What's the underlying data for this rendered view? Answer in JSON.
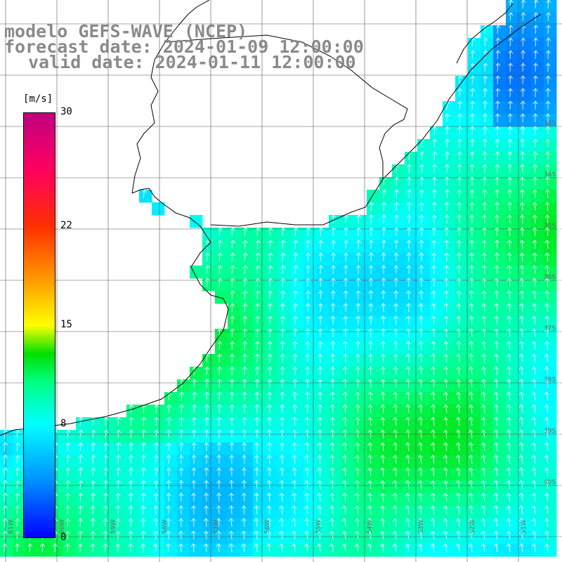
{
  "title": {
    "model": "modelo GEFS-WAVE (NCEP)",
    "forecast": "forecast date: 2024-01-09 12:00:00",
    "valid": "valid date: 2024-01-11 12:00:00"
  },
  "colorbar": {
    "unit": "[m/s]",
    "min": 0,
    "max": 30,
    "ticks": [
      {
        "value": 30,
        "label": "30"
      },
      {
        "value": 22,
        "label": "22"
      },
      {
        "value": 15,
        "label": "15"
      },
      {
        "value": 8,
        "label": "8"
      },
      {
        "value": 0,
        "label": "0"
      }
    ],
    "stops": [
      {
        "value": 0,
        "color": "#0000ff"
      },
      {
        "value": 4,
        "color": "#0090ff"
      },
      {
        "value": 8,
        "color": "#00ffff"
      },
      {
        "value": 11,
        "color": "#00ff80"
      },
      {
        "value": 13,
        "color": "#00e000"
      },
      {
        "value": 15,
        "color": "#ffff00"
      },
      {
        "value": 18,
        "color": "#ffa000"
      },
      {
        "value": 22,
        "color": "#ff3000"
      },
      {
        "value": 26,
        "color": "#ff0060"
      },
      {
        "value": 30,
        "color": "#c00080"
      }
    ]
  },
  "axes": {
    "lon_labels": [
      "61W",
      "60W",
      "59W",
      "58W",
      "57W",
      "56W",
      "55W",
      "54W",
      "53W",
      "52W",
      "51W"
    ],
    "lat_labels": [
      "33S",
      "34S",
      "35S",
      "36S",
      "37S",
      "38S",
      "39S",
      "40S"
    ]
  },
  "wind_field": {
    "variable": "wind speed",
    "units": "m/s",
    "direction": "from south (vectors pointing north)",
    "value_range": [
      6,
      13
    ]
  }
}
